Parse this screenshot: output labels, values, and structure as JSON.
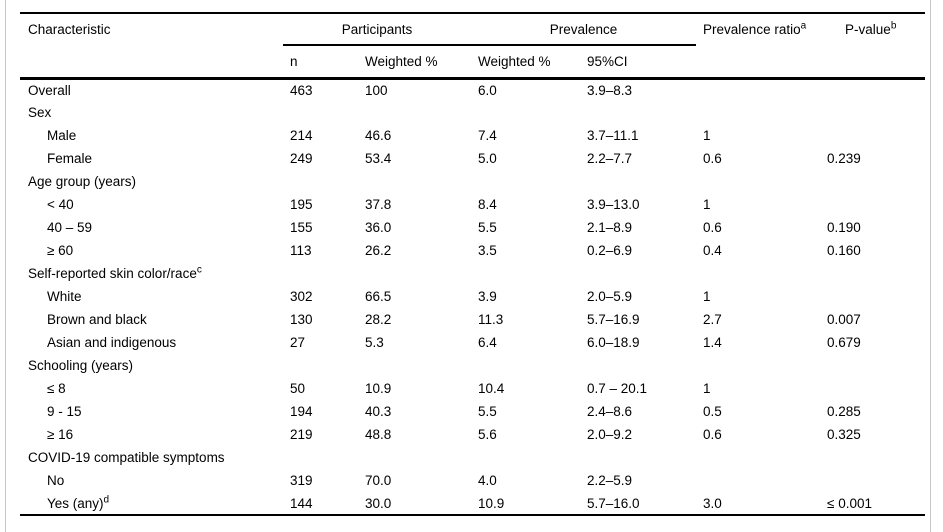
{
  "page": {
    "background": "#ffffff",
    "frame_line_color": "#c5c5c5",
    "rule_color": "#000000",
    "text_color": "#000000"
  },
  "table": {
    "header": {
      "characteristic": "Characteristic",
      "participants_group": "Participants",
      "prevalence_group": "Prevalence",
      "prevalence_ratio": "Prevalence ratio",
      "prevalence_ratio_sup": "a",
      "p_value": "P-value",
      "p_value_sup": "b",
      "n": "n",
      "participants_weighted_pct": "Weighted %",
      "prevalence_weighted_pct": "Weighted %",
      "ci_95": "95%CI"
    },
    "rows": [
      {
        "label": "Overall",
        "sup": "",
        "ind": 0,
        "n": "463",
        "wpct": "100",
        "prev": "6.0",
        "ci": "3.9–8.3",
        "ratio": "",
        "p": ""
      },
      {
        "label": "Sex",
        "sup": "",
        "ind": 0,
        "n": "",
        "wpct": "",
        "prev": "",
        "ci": "",
        "ratio": "",
        "p": ""
      },
      {
        "label": "Male",
        "sup": "",
        "ind": 1,
        "n": "214",
        "wpct": "46.6",
        "prev": "7.4",
        "ci": "3.7–11.1",
        "ratio": "1",
        "p": ""
      },
      {
        "label": "Female",
        "sup": "",
        "ind": 1,
        "n": "249",
        "wpct": "53.4",
        "prev": "5.0",
        "ci": "2.2–7.7",
        "ratio": "0.6",
        "p": "0.239"
      },
      {
        "label": "Age group (years)",
        "sup": "",
        "ind": 0,
        "n": "",
        "wpct": "",
        "prev": "",
        "ci": "",
        "ratio": "",
        "p": ""
      },
      {
        "label": "< 40",
        "sup": "",
        "ind": 1,
        "n": "195",
        "wpct": "37.8",
        "prev": "8.4",
        "ci": "3.9–13.0",
        "ratio": "1",
        "p": ""
      },
      {
        "label": "40 – 59",
        "sup": "",
        "ind": 1,
        "n": "155",
        "wpct": "36.0",
        "prev": "5.5",
        "ci": "2.1–8.9",
        "ratio": "0.6",
        "p": "0.190"
      },
      {
        "label": "≥ 60",
        "sup": "",
        "ind": 1,
        "n": "113",
        "wpct": "26.2",
        "prev": "3.5",
        "ci": "0.2–6.9",
        "ratio": "0.4",
        "p": "0.160"
      },
      {
        "label": "Self-reported skin color/race",
        "sup": "c",
        "ind": 0,
        "n": "",
        "wpct": "",
        "prev": "",
        "ci": "",
        "ratio": "",
        "p": ""
      },
      {
        "label": "White",
        "sup": "",
        "ind": 1,
        "n": "302",
        "wpct": "66.5",
        "prev": "3.9",
        "ci": "2.0–5.9",
        "ratio": "1",
        "p": ""
      },
      {
        "label": "Brown and black",
        "sup": "",
        "ind": 1,
        "n": "130",
        "wpct": "28.2",
        "prev": "11.3",
        "ci": "5.7–16.9",
        "ratio": "2.7",
        "p": "0.007"
      },
      {
        "label": "Asian and indigenous",
        "sup": "",
        "ind": 1,
        "n": "27",
        "wpct": "5.3",
        "prev": "6.4",
        "ci": "6.0–18.9",
        "ratio": "1.4",
        "p": "0.679"
      },
      {
        "label": "Schooling (years)",
        "sup": "",
        "ind": 0,
        "n": "",
        "wpct": "",
        "prev": "",
        "ci": "",
        "ratio": "",
        "p": ""
      },
      {
        "label": "≤ 8",
        "sup": "",
        "ind": 1,
        "n": "50",
        "wpct": "10.9",
        "prev": "10.4",
        "ci": "0.7 – 20.1",
        "ratio": "1",
        "p": ""
      },
      {
        "label": "9 - 15",
        "sup": "",
        "ind": 1,
        "n": "194",
        "wpct": "40.3",
        "prev": "5.5",
        "ci": "2.4–8.6",
        "ratio": "0.5",
        "p": "0.285"
      },
      {
        "label": "≥ 16",
        "sup": "",
        "ind": 1,
        "n": "219",
        "wpct": "48.8",
        "prev": "5.6",
        "ci": "2.0–9.2",
        "ratio": "0.6",
        "p": "0.325"
      },
      {
        "label": "COVID-19 compatible symptoms",
        "sup": "",
        "ind": 0,
        "n": "",
        "wpct": "",
        "prev": "",
        "ci": "",
        "ratio": "",
        "p": ""
      },
      {
        "label": "No",
        "sup": "",
        "ind": 1,
        "n": "319",
        "wpct": "70.0",
        "prev": "4.0",
        "ci": "2.2–5.9",
        "ratio": "",
        "p": ""
      },
      {
        "label": "Yes (any)",
        "sup": "d",
        "ind": 1,
        "n": "144",
        "wpct": "30.0",
        "prev": "10.9",
        "ci": "5.7–16.0",
        "ratio": "3.0",
        "p": "≤ 0.001"
      }
    ]
  }
}
